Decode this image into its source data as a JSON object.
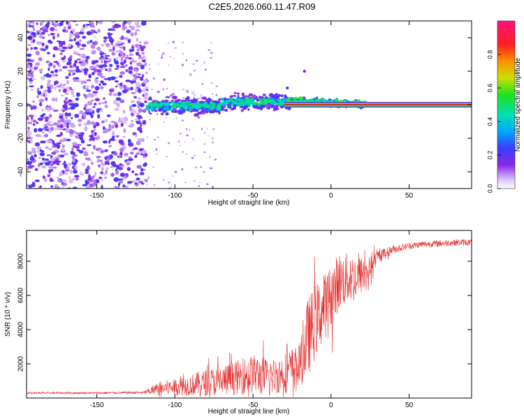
{
  "title": "C2E5.2026.060.11.47.R09",
  "colorbar": {
    "label": "Normalized spectral amplitude",
    "ticks": [
      0.0,
      0.2,
      0.4,
      0.6,
      0.8
    ],
    "tick_labels": [
      "0.0",
      "0.2",
      "0.4",
      "0.6",
      "0.8"
    ],
    "range": [
      0,
      1
    ]
  },
  "colors": {
    "snr_line": "#e53030",
    "carrier": "#d01818",
    "points_low": "#8a2be2",
    "points_mid": "#2040ff",
    "points_high": "#00e0a0"
  },
  "chart_data": [
    {
      "type": "heatmap",
      "title": "C2E5.2026.060.11.47.R09",
      "xlabel": "Height of straight line (km)",
      "ylabel": "Frequency (Hz)",
      "xlim": [
        -195,
        90
      ],
      "ylim": [
        -50,
        50
      ],
      "xticks": [
        -150,
        -100,
        -50,
        0,
        50
      ],
      "xtick_labels": [
        "-150",
        "-100",
        "-50",
        "0",
        "50"
      ],
      "yticks": [
        -40,
        -20,
        0,
        20,
        40
      ],
      "ytick_labels": [
        "-40",
        "-20",
        "0",
        "20",
        "40"
      ],
      "colorbar_label": "Normalized spectral amplitude",
      "regions": [
        {
          "name": "noise",
          "x_range": [
            -195,
            -118
          ],
          "freq_range": [
            -50,
            50
          ],
          "amplitude": 0.15
        },
        {
          "name": "scintillation",
          "x_range": [
            -118,
            22
          ],
          "freq_range": [
            -8,
            8
          ],
          "amplitude": 0.3
        },
        {
          "name": "carrier",
          "x_range": [
            -30,
            90
          ],
          "freq": 0,
          "amplitude": 0.98
        }
      ]
    },
    {
      "type": "line",
      "xlabel": "Height of straight line (km)",
      "ylabel": "SNR (10 * v/v)",
      "xlim": [
        -195,
        90
      ],
      "ylim": [
        0,
        9800
      ],
      "xticks": [
        -150,
        -100,
        -50,
        0,
        50
      ],
      "xtick_labels": [
        "-150",
        "-100",
        "-50",
        "0",
        "50"
      ],
      "yticks": [
        2000,
        4000,
        6000,
        8000
      ],
      "ytick_labels": [
        "2000",
        "4000",
        "6000",
        "8000"
      ],
      "envelope": {
        "x": [
          -195,
          -150,
          -120,
          -110,
          -100,
          -90,
          -80,
          -70,
          -60,
          -50,
          -45,
          -40,
          -35,
          -30,
          -25,
          -20,
          -15,
          -10,
          -5,
          0,
          5,
          10,
          15,
          20,
          25,
          30,
          40,
          50,
          60,
          70,
          80,
          90
        ],
        "mean": [
          300,
          300,
          320,
          550,
          650,
          750,
          900,
          1000,
          1200,
          1400,
          1300,
          1200,
          1300,
          1500,
          1700,
          1900,
          3500,
          4500,
          5200,
          6000,
          6800,
          7000,
          7000,
          7200,
          7600,
          8300,
          8700,
          8900,
          9000,
          9050,
          9100,
          9100
        ],
        "amp": [
          60,
          60,
          80,
          450,
          550,
          700,
          900,
          1000,
          1100,
          1300,
          1300,
          1200,
          1200,
          1300,
          1400,
          1400,
          2600,
          2400,
          2200,
          2000,
          1900,
          1700,
          1600,
          1200,
          800,
          400,
          250,
          200,
          200,
          200,
          200,
          200
        ]
      }
    }
  ]
}
